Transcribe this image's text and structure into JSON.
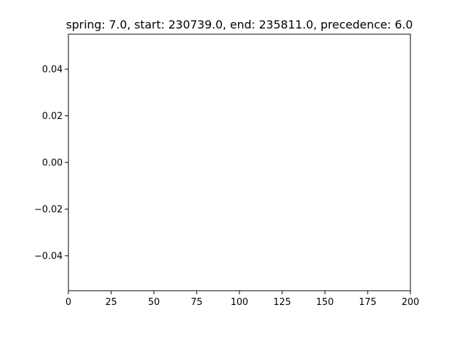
{
  "chart_data": {
    "type": "line",
    "title": "spring: 7.0, start: 230739.0, end: 235811.0, precedence: 6.0",
    "xlabel": "",
    "ylabel": "",
    "xlim": [
      0,
      200
    ],
    "ylim": [
      -0.055,
      0.055
    ],
    "x_ticks": [
      0,
      25,
      50,
      75,
      100,
      125,
      150,
      175,
      200
    ],
    "x_tick_labels": [
      "0",
      "25",
      "50",
      "75",
      "100",
      "125",
      "150",
      "175",
      "200"
    ],
    "y_ticks": [
      -0.04,
      -0.02,
      0.0,
      0.02,
      0.04
    ],
    "y_tick_labels": [
      "−0.04",
      "−0.02",
      "0.00",
      "0.02",
      "0.04"
    ],
    "series": [],
    "grid": false,
    "legend": "none"
  }
}
